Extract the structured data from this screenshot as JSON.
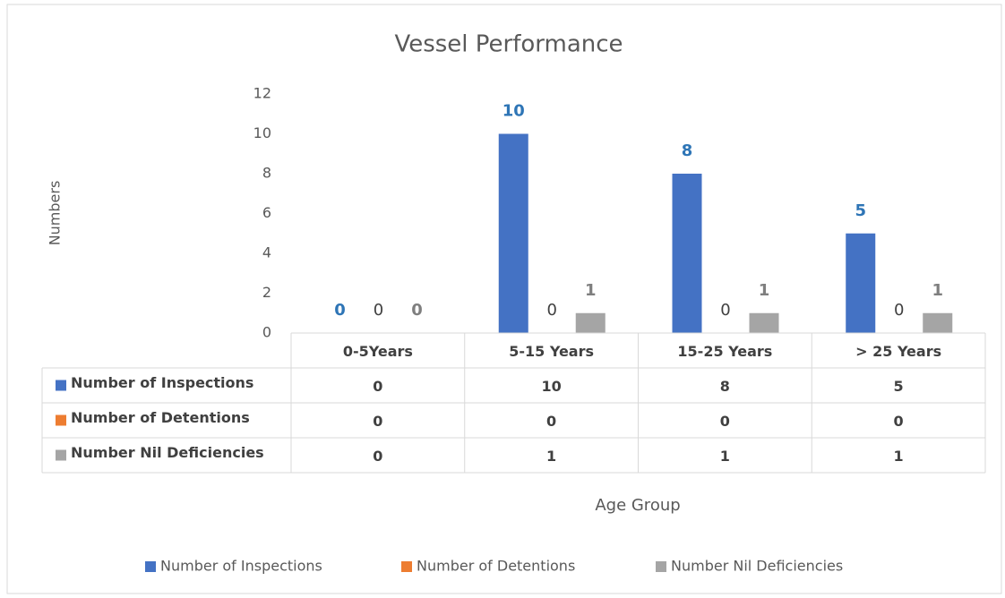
{
  "chart_data": {
    "type": "bar",
    "title": "Vessel Performance",
    "x_label": "Age Group",
    "y_label": "Numbers",
    "categories": [
      "0-5Years",
      "5-15 Years",
      "15-25 Years",
      "> 25 Years"
    ],
    "series": [
      {
        "name": "Number of Inspections",
        "color": "#4472c4",
        "values": [
          0,
          10,
          8,
          5
        ]
      },
      {
        "name": "Number of Detentions",
        "color": "#ed7d31",
        "values": [
          0,
          0,
          0,
          0
        ]
      },
      {
        "name": "Number Nil Deficiencies",
        "color": "#a5a5a5",
        "values": [
          0,
          1,
          1,
          1
        ]
      }
    ],
    "ylim": [
      0,
      12
    ],
    "yticks": [
      0,
      2,
      4,
      6,
      8,
      10,
      12
    ],
    "grid": false,
    "legend": "bottom",
    "data_table": true
  }
}
